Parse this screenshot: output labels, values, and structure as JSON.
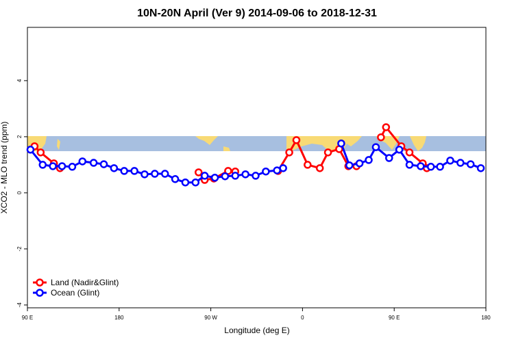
{
  "chart_data": {
    "type": "line",
    "title": "10N-20N April (Ver 9)   2014-09-06 to 2018-12-31",
    "x_label": "Longitude (deg E)",
    "y_label": "XCO2 - MLO trend (ppm)",
    "xlim": [
      90,
      540
    ],
    "xticks": [
      {
        "value": 90,
        "label": "90 E"
      },
      180,
      {
        "value": 270,
        "label": "90 W"
      },
      {
        "value": 360,
        "label": "0"
      },
      {
        "value": 450,
        "label": "90 E"
      },
      {
        "value": 540,
        "label": "180"
      }
    ],
    "ylim": [
      -4.1,
      5.9
    ],
    "yticks": [
      -4,
      -2,
      0,
      2,
      4
    ],
    "legend": "bottom-left",
    "series": [
      {
        "name": "Land (Nadir&Glint)",
        "color": "#ff0000",
        "x": [
          97,
          103,
          116,
          122,
          null,
          258,
          264,
          273,
          287,
          294,
          null,
          336,
          347,
          354,
          365,
          377,
          385,
          396,
          405,
          413,
          null,
          437,
          442,
          457,
          465,
          478,
          482
        ],
        "values": [
          1.66,
          1.44,
          1.05,
          0.88,
          null,
          0.73,
          0.46,
          0.51,
          0.78,
          0.76,
          null,
          0.78,
          1.44,
          1.88,
          1.0,
          0.88,
          1.44,
          1.56,
          0.95,
          0.95,
          null,
          1.98,
          2.34,
          1.66,
          1.44,
          1.05,
          0.88
        ]
      },
      {
        "name": "Ocean (Glint)",
        "color": "#0000ff",
        "x": [
          93,
          105,
          115,
          124,
          134,
          144,
          155,
          165,
          175,
          185,
          195,
          205,
          215,
          225,
          235,
          245,
          255,
          264,
          274,
          284,
          294,
          304,
          314,
          324,
          335,
          341,
          null,
          398,
          406,
          416,
          425,
          432,
          445,
          455,
          465,
          476,
          486,
          495,
          505,
          515,
          525,
          535
        ],
        "values": [
          1.54,
          1.0,
          0.95,
          0.95,
          0.93,
          1.12,
          1.07,
          1.02,
          0.88,
          0.78,
          0.78,
          0.66,
          0.68,
          0.68,
          0.49,
          0.37,
          0.37,
          0.61,
          0.54,
          0.59,
          0.61,
          0.66,
          0.61,
          0.76,
          0.8,
          0.88,
          null,
          1.76,
          0.98,
          1.05,
          1.17,
          1.63,
          1.24,
          1.54,
          1.0,
          0.95,
          0.93,
          0.93,
          1.15,
          1.07,
          1.02,
          0.88
        ]
      }
    ]
  }
}
